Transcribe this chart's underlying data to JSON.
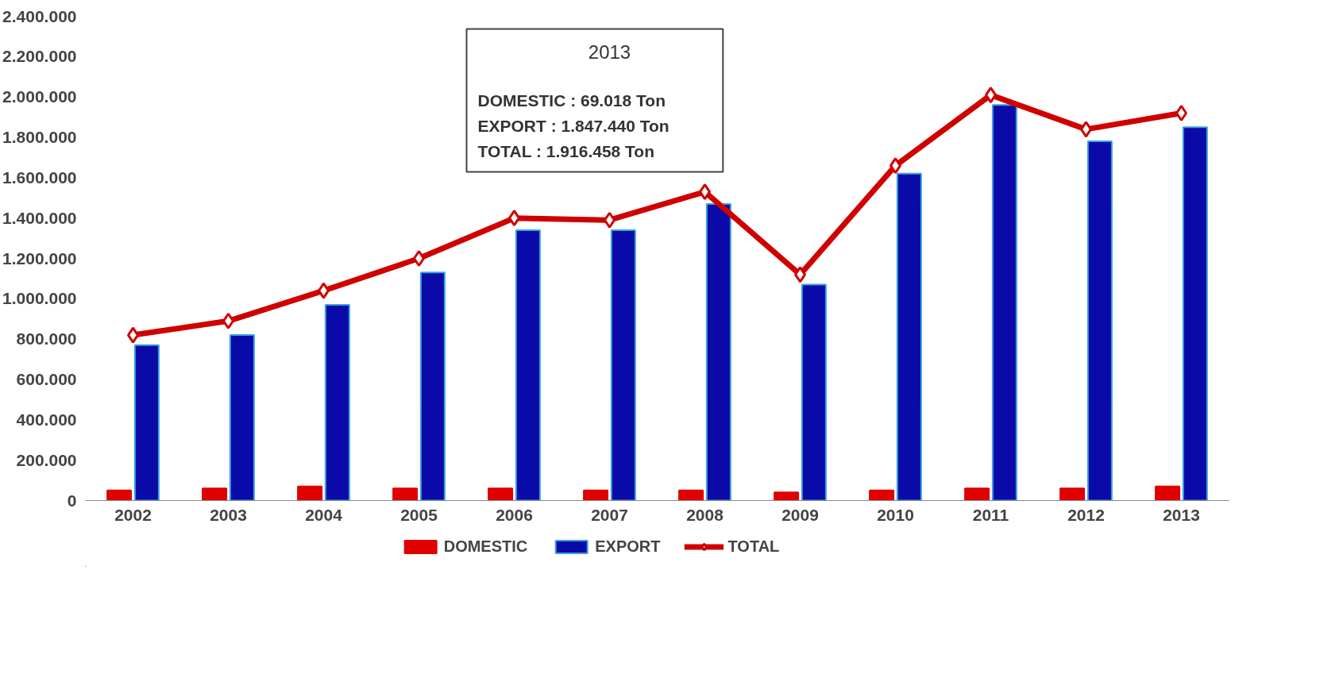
{
  "chart_data": {
    "type": "bar",
    "categories": [
      "2002",
      "2003",
      "2004",
      "2005",
      "2006",
      "2007",
      "2008",
      "2009",
      "2010",
      "2011",
      "2012",
      "2013"
    ],
    "series": [
      {
        "name": "DOMESTIC",
        "color": "#e00000",
        "values": [
          50000,
          60000,
          70000,
          60000,
          60000,
          50000,
          50000,
          40000,
          50000,
          60000,
          60000,
          70000
        ]
      },
      {
        "name": "EXPORT",
        "color": "#0a0aa8",
        "values": [
          770000,
          820000,
          970000,
          1130000,
          1340000,
          1340000,
          1470000,
          1070000,
          1620000,
          1960000,
          1780000,
          1850000
        ]
      },
      {
        "name": "TOTAL",
        "type": "line",
        "color": "#d00000",
        "marker": "diamond",
        "values": [
          820000,
          890000,
          1040000,
          1200000,
          1400000,
          1390000,
          1530000,
          1120000,
          1660000,
          2010000,
          1840000,
          1920000
        ]
      }
    ],
    "ylim": [
      0,
      2400000
    ],
    "yticks": [
      0,
      {
        "value": 200000,
        "label": "200.000"
      },
      {
        "value": 400000,
        "label": "400.000"
      },
      {
        "value": 600000,
        "label": "600.000"
      },
      {
        "value": 800000,
        "label": "800.000"
      },
      {
        "value": 1000000,
        "label": "1.000.000"
      },
      {
        "value": 1200000,
        "label": "1.200.000"
      },
      {
        "value": 1400000,
        "label": "1.400.000"
      },
      {
        "value": 1600000,
        "label": "1.600.000"
      },
      {
        "value": 1800000,
        "label": "1.800.000"
      },
      {
        "value": 2000000,
        "label": "2.000.000"
      },
      {
        "value": 2200000,
        "label": "2.200.000"
      },
      {
        "value": 2400000,
        "label": "2.400.000"
      }
    ],
    "annotations": [
      "2013",
      "DOMESTIC     :       69.018 Ton",
      "EXPORT         : 1.847.440 Ton",
      "TOTAL            : 1.916.458 Ton"
    ],
    "grid": false,
    "legend": "bottom"
  }
}
